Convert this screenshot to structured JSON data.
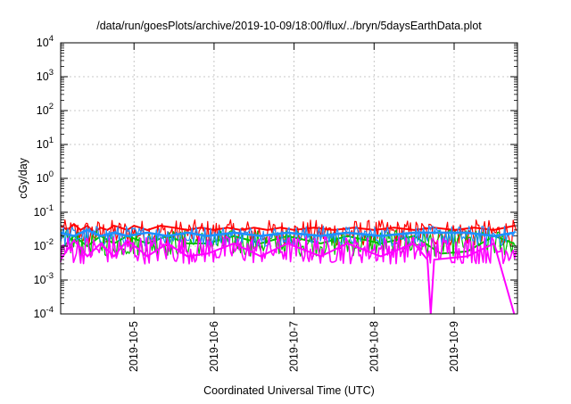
{
  "chart_data": {
    "type": "line",
    "title": "/data/run/goesPlots/archive/2019-10-09/18:00/flux/../bryn/5daysEarthData.plot",
    "xlabel": "Coordinated Universal Time (UTC)",
    "ylabel": "cGy/day",
    "yscale": "log",
    "xlim": [
      "2019-10-04T02:00",
      "2019-10-09T19:00"
    ],
    "ylim": [
      0.0001,
      10000
    ],
    "grid": true,
    "legend": "none",
    "x_ticks": [
      {
        "value": "2019-10-05",
        "label": "2019-10-5"
      },
      {
        "value": "2019-10-06",
        "label": "2019-10-6"
      },
      {
        "value": "2019-10-07",
        "label": "2019-10-7"
      },
      {
        "value": "2019-10-08",
        "label": "2019-10-8"
      },
      {
        "value": "2019-10-09",
        "label": "2019-10-9"
      }
    ],
    "y_ticks": [
      {
        "value": 0.0001,
        "base": "10",
        "exp": "-4"
      },
      {
        "value": 0.001,
        "base": "10",
        "exp": "-3"
      },
      {
        "value": 0.01,
        "base": "10",
        "exp": "-2"
      },
      {
        "value": 0.1,
        "base": "10",
        "exp": "-1"
      },
      {
        "value": 1,
        "base": "10",
        "exp": "0"
      },
      {
        "value": 10,
        "base": "10",
        "exp": "1"
      },
      {
        "value": 100,
        "base": "10",
        "exp": "2"
      },
      {
        "value": 1000,
        "base": "10",
        "exp": "3"
      },
      {
        "value": 10000,
        "base": "10",
        "exp": "4"
      }
    ],
    "series": [
      {
        "color": "#ff0000",
        "typical_range": [
          0.01,
          0.06
        ],
        "values": [
          [
            "2019-10-04T02:00",
            0.04
          ],
          [
            "2019-10-04T04:00",
            0.03
          ],
          [
            "2019-10-04T06:00",
            0.045
          ],
          [
            "2019-10-04T08:00",
            0.03
          ],
          [
            "2019-10-04T10:00",
            0.04
          ],
          [
            "2019-10-04T12:00",
            0.025
          ],
          [
            "2019-10-04T14:00",
            0.035
          ],
          [
            "2019-10-04T16:00",
            0.03
          ],
          [
            "2019-10-04T18:00",
            0.04
          ],
          [
            "2019-10-04T20:00",
            0.035
          ],
          [
            "2019-10-04T22:00",
            0.03
          ],
          [
            "2019-10-05T00:00",
            0.04
          ],
          [
            "2019-10-05T04:00",
            0.03
          ],
          [
            "2019-10-05T08:00",
            0.04
          ],
          [
            "2019-10-05T12:00",
            0.035
          ],
          [
            "2019-10-05T16:00",
            0.03
          ],
          [
            "2019-10-05T20:00",
            0.035
          ],
          [
            "2019-10-06T00:00",
            0.03
          ],
          [
            "2019-10-06T04:00",
            0.035
          ],
          [
            "2019-10-06T08:00",
            0.03
          ],
          [
            "2019-10-06T12:00",
            0.035
          ],
          [
            "2019-10-06T16:00",
            0.03
          ],
          [
            "2019-10-06T20:00",
            0.035
          ],
          [
            "2019-10-07T00:00",
            0.03
          ],
          [
            "2019-10-07T06:00",
            0.035
          ],
          [
            "2019-10-07T12:00",
            0.03
          ],
          [
            "2019-10-07T18:00",
            0.035
          ],
          [
            "2019-10-08T00:00",
            0.03
          ],
          [
            "2019-10-08T06:00",
            0.035
          ],
          [
            "2019-10-08T12:00",
            0.03
          ],
          [
            "2019-10-08T18:00",
            0.035
          ],
          [
            "2019-10-09T00:00",
            0.03
          ],
          [
            "2019-10-09T06:00",
            0.035
          ],
          [
            "2019-10-09T12:00",
            0.03
          ],
          [
            "2019-10-09T18:00",
            0.04
          ]
        ]
      },
      {
        "color": "#00c000",
        "typical_range": [
          0.005,
          0.03
        ],
        "values": [
          [
            "2019-10-04T02:00",
            0.008
          ],
          [
            "2019-10-04T06:00",
            0.02
          ],
          [
            "2019-10-04T10:00",
            0.01
          ],
          [
            "2019-10-04T14:00",
            0.02
          ],
          [
            "2019-10-04T18:00",
            0.012
          ],
          [
            "2019-10-04T22:00",
            0.02
          ],
          [
            "2019-10-05T04:00",
            0.012
          ],
          [
            "2019-10-05T10:00",
            0.02
          ],
          [
            "2019-10-05T16:00",
            0.012
          ],
          [
            "2019-10-05T22:00",
            0.012
          ],
          [
            "2019-10-06T06:00",
            0.02
          ],
          [
            "2019-10-06T14:00",
            0.012
          ],
          [
            "2019-10-06T22:00",
            0.02
          ],
          [
            "2019-10-07T08:00",
            0.012
          ],
          [
            "2019-10-07T16:00",
            0.02
          ],
          [
            "2019-10-08T02:00",
            0.012
          ],
          [
            "2019-10-08T12:00",
            0.02
          ],
          [
            "2019-10-08T20:00",
            0.006
          ],
          [
            "2019-10-09T04:00",
            0.007
          ],
          [
            "2019-10-09T12:00",
            0.02
          ],
          [
            "2019-10-09T18:00",
            0.012
          ]
        ]
      },
      {
        "color": "#1e90ff",
        "typical_range": [
          0.01,
          0.04
        ],
        "values": [
          [
            "2019-10-04T02:00",
            0.025
          ],
          [
            "2019-10-04T06:00",
            0.02
          ],
          [
            "2019-10-04T10:00",
            0.03
          ],
          [
            "2019-10-04T14:00",
            0.02
          ],
          [
            "2019-10-04T18:00",
            0.025
          ],
          [
            "2019-10-04T22:00",
            0.02
          ],
          [
            "2019-10-05T04:00",
            0.025
          ],
          [
            "2019-10-05T10:00",
            0.02
          ],
          [
            "2019-10-05T16:00",
            0.025
          ],
          [
            "2019-10-05T22:00",
            0.02
          ],
          [
            "2019-10-06T06:00",
            0.025
          ],
          [
            "2019-10-06T14:00",
            0.02
          ],
          [
            "2019-10-06T22:00",
            0.025
          ],
          [
            "2019-10-07T08:00",
            0.02
          ],
          [
            "2019-10-07T16:00",
            0.025
          ],
          [
            "2019-10-08T02:00",
            0.02
          ],
          [
            "2019-10-08T12:00",
            0.025
          ],
          [
            "2019-10-08T20:00",
            0.025
          ],
          [
            "2019-10-09T04:00",
            0.025
          ],
          [
            "2019-10-09T12:00",
            0.02
          ],
          [
            "2019-10-09T18:00",
            0.025
          ]
        ]
      },
      {
        "color": "#ff00ff",
        "typical_range": [
          0.003,
          0.02
        ],
        "values": [
          [
            "2019-10-04T02:00",
            0.004
          ],
          [
            "2019-10-04T06:00",
            0.015
          ],
          [
            "2019-10-04T10:00",
            0.005
          ],
          [
            "2019-10-04T14:00",
            0.012
          ],
          [
            "2019-10-04T18:00",
            0.005
          ],
          [
            "2019-10-04T22:00",
            0.015
          ],
          [
            "2019-10-05T04:00",
            0.005
          ],
          [
            "2019-10-05T10:00",
            0.012
          ],
          [
            "2019-10-05T16:00",
            0.005
          ],
          [
            "2019-10-05T22:00",
            0.006
          ],
          [
            "2019-10-06T06:00",
            0.012
          ],
          [
            "2019-10-06T14:00",
            0.005
          ],
          [
            "2019-10-06T22:00",
            0.012
          ],
          [
            "2019-10-07T08:00",
            0.005
          ],
          [
            "2019-10-07T16:00",
            0.012
          ],
          [
            "2019-10-08T02:00",
            0.005
          ],
          [
            "2019-10-08T12:00",
            0.012
          ],
          [
            "2019-10-08T16:00",
            0.004
          ],
          [
            "2019-10-08T17:00",
            0.0001
          ],
          [
            "2019-10-08T18:00",
            0.004
          ],
          [
            "2019-10-09T04:00",
            0.005
          ],
          [
            "2019-10-09T12:00",
            0.012
          ],
          [
            "2019-10-09T18:00",
            0.0001
          ]
        ]
      }
    ]
  }
}
